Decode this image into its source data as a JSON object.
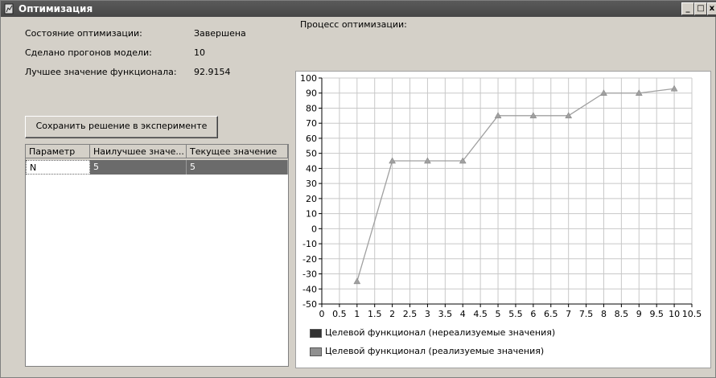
{
  "window": {
    "title": "Оптимизация",
    "controls": {
      "minimize": "_",
      "maximize": "□",
      "close": "x"
    }
  },
  "status": {
    "items": [
      {
        "label": "Состояние оптимизации:",
        "value": "Завершена"
      },
      {
        "label": "Сделано прогонов модели:",
        "value": "10"
      },
      {
        "label": "Лучшее значение функционала:",
        "value": "92.9154"
      }
    ]
  },
  "save_button": {
    "label": "Сохранить решение в эксперименте"
  },
  "params_table": {
    "headers": [
      "Параметр",
      "Наилучшее значе...",
      "Текущее значение"
    ],
    "rows": [
      {
        "name": "N",
        "best": "5",
        "current": "5"
      }
    ]
  },
  "process_label": "Процесс оптимизации:",
  "chart_data": {
    "type": "line",
    "x": [
      1,
      2,
      3,
      4,
      5,
      6,
      7,
      8,
      9,
      10
    ],
    "series": [
      {
        "name": "Целевой функционал (реализуемые значения)",
        "values": [
          -35,
          45,
          45,
          45,
          75,
          75,
          75,
          90,
          90,
          92.9154
        ],
        "color": "#a0a0a0",
        "marker": "triangle"
      }
    ],
    "xlim": [
      0,
      10.5
    ],
    "ylim": [
      -50,
      100
    ],
    "x_ticks": [
      "0",
      "0.5",
      "1",
      "1.5",
      "2",
      "2.5",
      "3",
      "3.5",
      "4",
      "4.5",
      "5",
      "5.5",
      "6",
      "6.5",
      "7",
      "7.5",
      "8",
      "8.5",
      "9",
      "9.5",
      "10",
      "10.5"
    ],
    "y_ticks": [
      "-50",
      "-40",
      "-30",
      "-20",
      "-10",
      "0",
      "10",
      "20",
      "30",
      "40",
      "50",
      "60",
      "70",
      "80",
      "90",
      "100"
    ],
    "grid": true,
    "legend_position": "bottom",
    "legend": [
      {
        "label": "Целевой функционал (нереализуемые значения)",
        "color": "#333333"
      },
      {
        "label": "Целевой функционал (реализуемые значения)",
        "color": "#909090"
      }
    ]
  }
}
